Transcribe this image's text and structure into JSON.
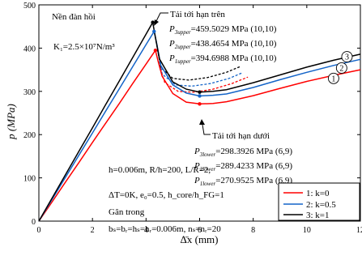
{
  "chart_data": {
    "type": "line",
    "xlabel": "Δ̄x (mm)",
    "ylabel": "p (MPa)",
    "xlim": [
      0,
      12
    ],
    "ylim": [
      0,
      500
    ],
    "x_ticks": [
      "0",
      "2",
      "4",
      "6",
      "8",
      "10",
      "12"
    ],
    "y_ticks": [
      "0",
      "100",
      "200",
      "300",
      "400",
      "500"
    ],
    "grid": false,
    "legend_position": "bottom-right",
    "legend": [
      "1: k=0",
      "2: k=0.5",
      "3: k=1"
    ],
    "series": [
      {
        "name": "1: k=0",
        "color": "#ff0000",
        "x": [
          0,
          0.5,
          1.0,
          1.5,
          2.0,
          2.5,
          3.0,
          3.5,
          4.0,
          4.35,
          4.45,
          4.6,
          5.0,
          5.5,
          6.0,
          6.5,
          7.0,
          8.0,
          9.0,
          10.0,
          11.0,
          12.0
        ],
        "y": [
          0,
          45,
          91,
          136,
          182,
          227,
          272,
          318,
          363,
          394.7,
          370,
          335,
          295,
          275,
          270.9,
          272,
          276,
          290,
          307,
          323,
          337,
          350
        ]
      },
      {
        "name": "2: k=0.5",
        "color": "#1464c8",
        "x": [
          0,
          0.5,
          1.0,
          1.5,
          2.0,
          2.5,
          3.0,
          3.5,
          4.0,
          4.3,
          4.4,
          4.55,
          5.0,
          5.5,
          6.0,
          6.5,
          7.0,
          8.0,
          9.0,
          10.0,
          11.0,
          12.0
        ],
        "y": [
          0,
          51,
          102,
          153,
          204,
          255,
          306,
          357,
          408,
          438.5,
          410,
          360,
          315,
          296,
          289.4,
          291,
          294,
          309,
          327,
          344,
          360,
          374
        ]
      },
      {
        "name": "3: k=1",
        "color": "#000000",
        "x": [
          0,
          0.5,
          1.0,
          1.5,
          2.0,
          2.5,
          3.0,
          3.5,
          4.0,
          4.25,
          4.35,
          4.5,
          5.0,
          5.5,
          6.0,
          6.5,
          7.0,
          8.0,
          9.0,
          10.0,
          11.0,
          12.0
        ],
        "y": [
          0,
          54,
          108,
          162,
          216,
          270,
          324,
          378,
          432,
          459.5,
          425,
          375,
          322,
          305,
          298.4,
          300,
          304,
          320,
          338,
          356,
          372,
          386
        ]
      }
    ],
    "dashed_series": [
      {
        "color": "#ff0000",
        "x": [
          4.45,
          4.7,
          5.2,
          5.8,
          6.5,
          7.2,
          7.8
        ],
        "y": [
          370,
          320,
          300,
          298,
          305,
          318,
          333
        ]
      },
      {
        "color": "#1464c8",
        "x": [
          4.4,
          4.6,
          5.1,
          5.7,
          6.4,
          7.1,
          7.6
        ],
        "y": [
          410,
          340,
          315,
          312,
          318,
          330,
          343
        ]
      },
      {
        "color": "#000000",
        "x": [
          4.35,
          4.55,
          5.0,
          5.6,
          6.3,
          7.0,
          7.5
        ],
        "y": [
          425,
          355,
          330,
          326,
          332,
          344,
          357
        ]
      }
    ],
    "curve_numbers": [
      {
        "label": "1",
        "x": 11.0,
        "y": 330
      },
      {
        "label": "2",
        "x": 11.3,
        "y": 354
      },
      {
        "label": "3",
        "x": 11.5,
        "y": 380
      }
    ],
    "annotations": {
      "substrate": "Nền đàn hồi",
      "k1": "K₁=2.5×10⁷N/m³",
      "upper_title": "Tải tới hạn trên",
      "upper": [
        {
          "sub": "3upper",
          "text": "=459.5029 MPa (10,10)"
        },
        {
          "sub": "2upper",
          "text": "=438.4654 MPa (10,10)"
        },
        {
          "sub": "1upper",
          "text": "=394.6988 MPa (10,10)"
        }
      ],
      "lower_title": "Tải tới hạn dưới",
      "lower": [
        {
          "sub": "3lower",
          "text": "=298.3926  MPa (6,9)"
        },
        {
          "sub": "2lower",
          "text": "=289.4233  MPa (6,9)"
        },
        {
          "sub": "1lower",
          "text": "=270.9525  MPa (6,9)"
        }
      ],
      "geometry": "h=0.006m, R/h=200, L/R=2,",
      "params": "ΔT=0K, e₀=0.5, h_core/h_FG=1",
      "stiffener_title": "Gân trong",
      "stiffener": "bₛ=bᵣ=hₛ=hᵣ=0.006m, nₛ=nᵣ=20"
    }
  }
}
